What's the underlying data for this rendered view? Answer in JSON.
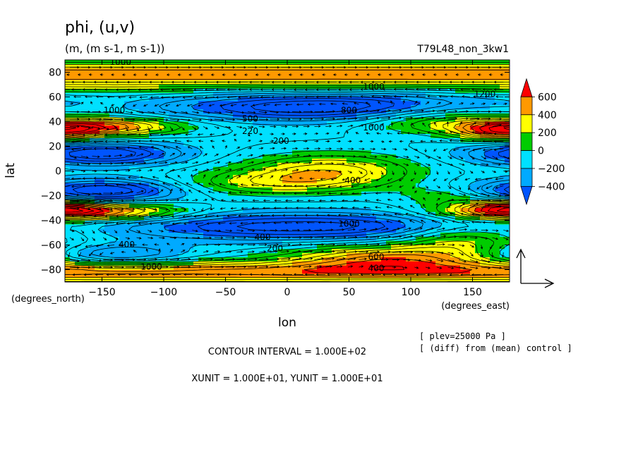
{
  "chart_data": {
    "type": "heatmap",
    "title": "phi, (u,v)",
    "units_line": "(m, (m s-1, m s-1))",
    "run_label": "T79L48_non_3kw1",
    "xlabel": "lon",
    "ylabel": "lat",
    "x_units": "(degrees_east)",
    "y_units": "(degrees_north)",
    "xlim": [
      -180,
      180
    ],
    "ylim": [
      -90,
      90
    ],
    "x_ticks": [
      -150,
      -100,
      -50,
      0,
      50,
      100,
      150
    ],
    "x_tick_labels": [
      "−150",
      "−100",
      "−50",
      "0",
      "50",
      "100",
      "150"
    ],
    "y_ticks": [
      80,
      60,
      40,
      20,
      0,
      -20,
      -40,
      -60,
      -80
    ],
    "y_tick_labels": [
      "80",
      "60",
      "40",
      "20",
      "0",
      "−20",
      "−40",
      "−60",
      "−80"
    ],
    "colorbar": {
      "levels": [
        -400,
        -200,
        0,
        200,
        400,
        600
      ],
      "labels": [
        "600",
        "400",
        "200",
        "0",
        "−200",
        "−400"
      ],
      "colors": [
        "#0055ff",
        "#00aaff",
        "#00e0ff",
        "#00cc00",
        "#ffff00",
        "#ff9900",
        "#ff0000"
      ]
    },
    "contour_labels": [
      {
        "text": "1000",
        "lon": -135,
        "lat": 86
      },
      {
        "text": "1000",
        "lon": -140,
        "lat": 47
      },
      {
        "text": "1000",
        "lon": 70,
        "lat": 66
      },
      {
        "text": "1200",
        "lon": 160,
        "lat": 60
      },
      {
        "text": "1000",
        "lon": 70,
        "lat": 33
      },
      {
        "text": "800",
        "lon": 50,
        "lat": 47
      },
      {
        "text": "500",
        "lon": -30,
        "lat": 40
      },
      {
        "text": "220",
        "lon": -30,
        "lat": 30
      },
      {
        "text": "200",
        "lon": -5,
        "lat": 22
      },
      {
        "text": "400",
        "lon": 53,
        "lat": -10
      },
      {
        "text": "400",
        "lon": -130,
        "lat": -62
      },
      {
        "text": "400",
        "lon": -20,
        "lat": -56
      },
      {
        "text": "200",
        "lon": -10,
        "lat": -65
      },
      {
        "text": "600",
        "lon": 72,
        "lat": -72
      },
      {
        "text": "400",
        "lon": 72,
        "lat": -81
      },
      {
        "text": "1000",
        "lon": -110,
        "lat": -80
      },
      {
        "text": "1000",
        "lon": 50,
        "lat": -45
      }
    ],
    "vector_reference": "(u,v) reference arrow",
    "contour_interval_text": "CONTOUR INTERVAL = 1.000E+02",
    "unit_text": "XUNIT = 1.000E+01, YUNIT = 1.000E+01",
    "notes": [
      "[ plev=25000 Pa ]",
      "[ (diff) from (mean) control ]"
    ]
  }
}
